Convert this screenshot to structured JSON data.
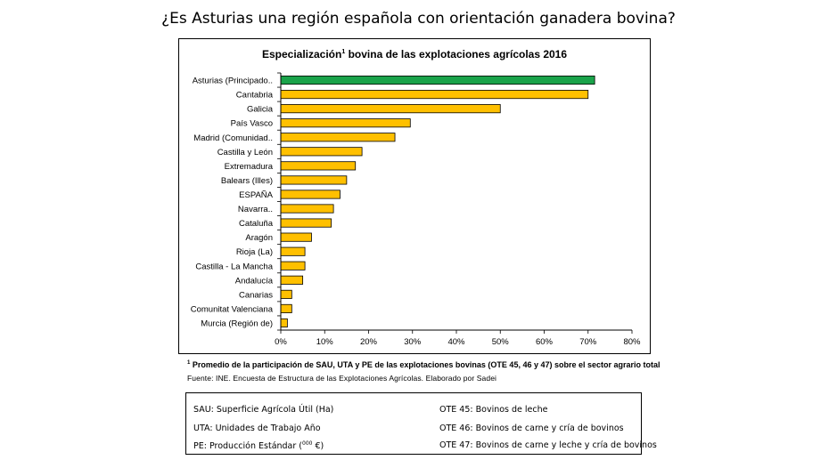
{
  "page_title": "¿Es Asturias una región española con orientación ganadera bovina?",
  "chart_data": {
    "type": "bar",
    "orientation": "horizontal",
    "title_main": "Especialización",
    "title_sup": "1",
    "title_rest": " bovina de las explotaciones agrícolas 2016",
    "categories": [
      "Asturias (Principado..",
      "Cantabria",
      "Galicia",
      "País Vasco",
      "Madrid (Comunidad..",
      "Castilla y León",
      "Extremadura",
      "Balears (Illes)",
      "ESPAÑA",
      "Navarra..",
      "Cataluña",
      "Aragón",
      "Rioja (La)",
      "Castilla - La Mancha",
      "Andalucía",
      "Canarias",
      "Comunitat Valenciana",
      "Murcia (Región de)"
    ],
    "values": [
      71.5,
      70,
      50,
      29.5,
      26,
      18.5,
      17,
      15,
      13.5,
      12,
      11.5,
      7,
      5.5,
      5.5,
      5,
      2.5,
      2.5,
      1.5
    ],
    "xlim": [
      0,
      80
    ],
    "xticks": [
      "0%",
      "10%",
      "20%",
      "30%",
      "40%",
      "50%",
      "60%",
      "70%",
      "80%"
    ],
    "xtick_values": [
      0,
      10,
      20,
      30,
      40,
      50,
      60,
      70,
      80
    ],
    "grid": false,
    "colors": {
      "highlight": "#1aa34a",
      "default": "#ffc000",
      "edge": "#000000"
    },
    "highlight_index": 0
  },
  "footnote": {
    "sup": "1",
    "text": " Promedio de la participación de SAU, UTA y PE de las explotaciones bovinas (OTE 45, 46 y 47) sobre el sector agrario total"
  },
  "source": "Fuente: INE. Encuesta de Estructura de las Explotaciones Agrícolas. Elaborado por Sadei",
  "legend": {
    "sau": "SAU: Superficie Agrícola Útil (Ha)",
    "uta": "UTA: Unidades de Trabajo Año",
    "pe_main": "PE: Producción Estándar (",
    "pe_sup": "000",
    "pe_end": " €)",
    "ote45": "OTE 45: Bovinos de leche",
    "ote46": "OTE 46: Bovinos de carne y cría de bovinos",
    "ote47": "OTE 47: Bovinos de carne y leche y cría de bovinos"
  }
}
